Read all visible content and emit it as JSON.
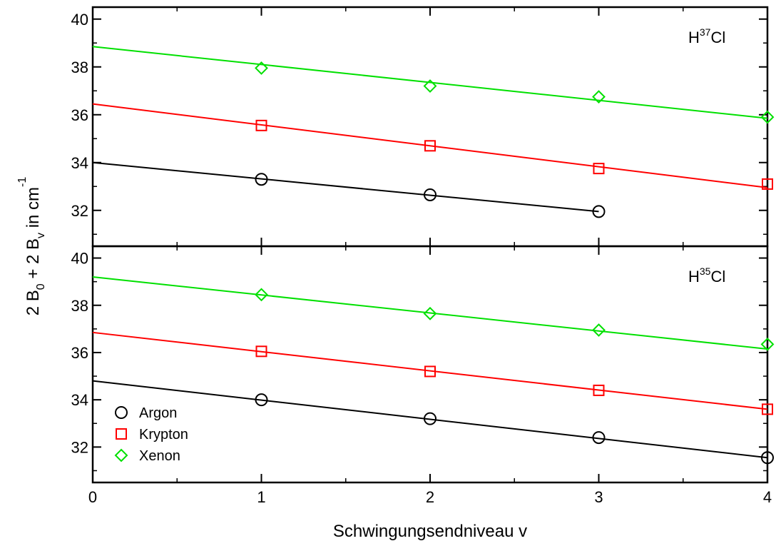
{
  "chart_data": [
    {
      "type": "scatter",
      "annotation": [
        "H",
        "37",
        "Cl"
      ],
      "ylabel": [
        "2 B",
        "0",
        " + 2 B",
        "v",
        " in cm",
        "-1"
      ],
      "xlim": [
        0,
        4
      ],
      "xticks": [
        0,
        1,
        2,
        3,
        4
      ],
      "xminor": [
        0.5,
        1.5,
        2.5,
        3.5
      ],
      "ylim": [
        30.5,
        40.5
      ],
      "yticks": [
        32,
        34,
        36,
        38,
        40
      ],
      "yminor": [
        31,
        33,
        35,
        37,
        39
      ],
      "x": [
        1,
        2,
        3,
        4
      ],
      "series": [
        {
          "name": "Argon",
          "color": "#000000",
          "marker": "circle",
          "values": [
            33.3,
            32.65,
            31.95,
            null
          ],
          "fit_x": [
            0,
            3
          ],
          "fit_values": [
            34.0,
            31.95
          ]
        },
        {
          "name": "Krypton",
          "color": "#ff0000",
          "marker": "square",
          "values": [
            35.55,
            34.7,
            33.75,
            33.1
          ],
          "fit_x": [
            0,
            4
          ],
          "fit_values": [
            36.45,
            32.95
          ]
        },
        {
          "name": "Xenon",
          "color": "#00e000",
          "marker": "diamond",
          "values": [
            37.95,
            37.2,
            36.75,
            35.9
          ],
          "fit_x": [
            0,
            4
          ],
          "fit_values": [
            38.85,
            35.85
          ]
        }
      ]
    },
    {
      "type": "scatter",
      "annotation": [
        "H",
        "35",
        "Cl"
      ],
      "xlabel": "Schwingungsendniveau v",
      "legend": "lower left",
      "xlim": [
        0,
        4
      ],
      "xticks": [
        0,
        1,
        2,
        3,
        4
      ],
      "xminor": [
        0.5,
        1.5,
        2.5,
        3.5
      ],
      "ylim": [
        30.5,
        40.5
      ],
      "yticks": [
        32,
        34,
        36,
        38,
        40
      ],
      "yminor": [
        31,
        33,
        35,
        37,
        39
      ],
      "x": [
        1,
        2,
        3,
        4
      ],
      "series": [
        {
          "name": "Argon",
          "color": "#000000",
          "marker": "circle",
          "values": [
            34.0,
            33.2,
            32.4,
            31.55
          ],
          "fit_x": [
            0,
            4
          ],
          "fit_values": [
            34.8,
            31.55
          ]
        },
        {
          "name": "Krypton",
          "color": "#ff0000",
          "marker": "square",
          "values": [
            36.05,
            35.2,
            34.4,
            33.6
          ],
          "fit_x": [
            0,
            4
          ],
          "fit_values": [
            36.85,
            33.6
          ]
        },
        {
          "name": "Xenon",
          "color": "#00e000",
          "marker": "diamond",
          "values": [
            38.45,
            37.65,
            36.95,
            36.35
          ],
          "fit_x": [
            0,
            4
          ],
          "fit_values": [
            39.2,
            36.15
          ]
        }
      ]
    }
  ]
}
